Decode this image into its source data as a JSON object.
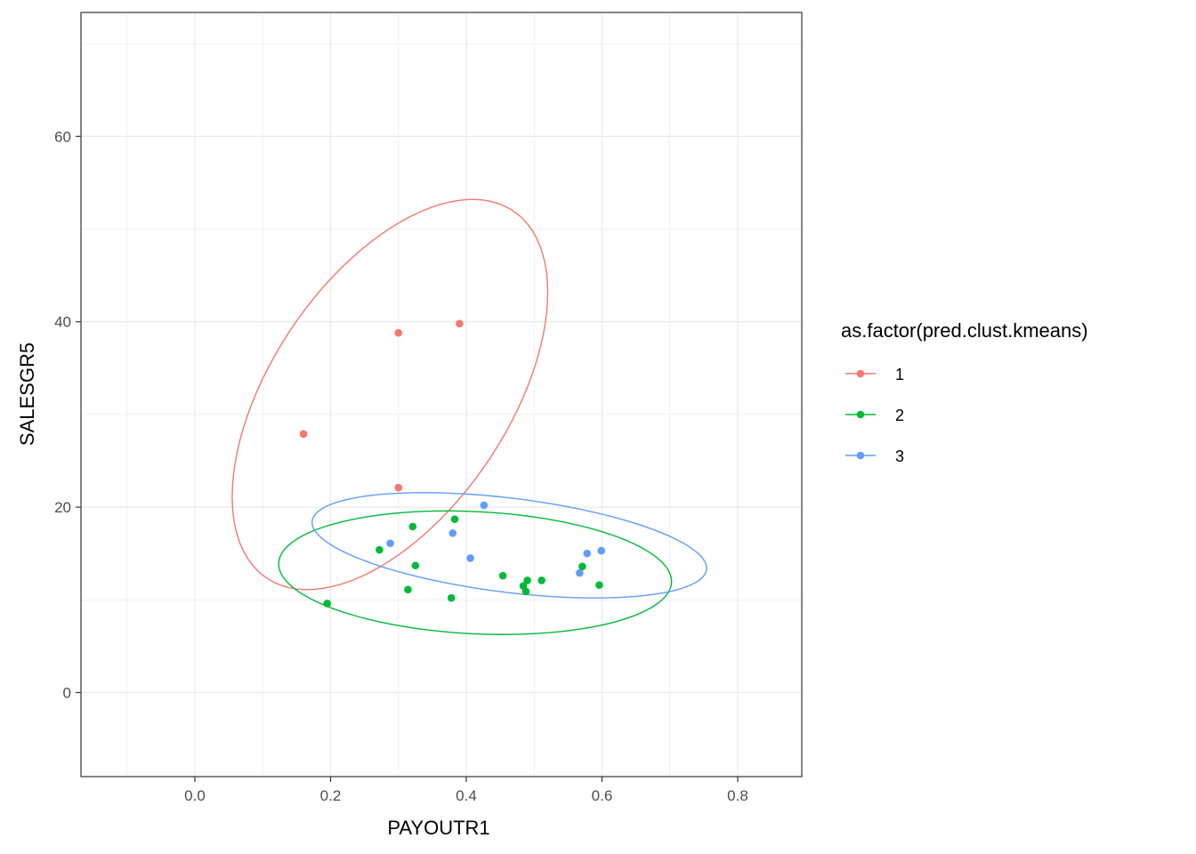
{
  "chart_data": {
    "type": "scatter",
    "xlabel": "PAYOUTR1",
    "ylabel": "SALESGR5",
    "xlim": [
      -0.17,
      0.89
    ],
    "ylim": [
      -9.0,
      73.0
    ],
    "x_ticks": [
      0.0,
      0.2,
      0.4,
      0.6,
      0.8
    ],
    "x_tick_labels": [
      "0.0",
      "0.2",
      "0.4",
      "0.6",
      "0.8"
    ],
    "x_minor_ticks": [
      -0.1,
      0.1,
      0.3,
      0.5,
      0.7
    ],
    "y_ticks": [
      0,
      20,
      40,
      60
    ],
    "y_tick_labels": [
      "0",
      "20",
      "40",
      "60"
    ],
    "y_minor_ticks": [
      10,
      30,
      50,
      70
    ],
    "grid": true,
    "legend": {
      "title": "as.factor(pred.clust.kmeans)",
      "placement": "right"
    },
    "series": [
      {
        "name": "1",
        "color": "#F8766D",
        "points": [
          {
            "x": 0.16,
            "y": 27.9
          },
          {
            "x": 0.3,
            "y": 38.8
          },
          {
            "x": 0.39,
            "y": 39.8
          },
          {
            "x": 0.3,
            "y": 22.1
          }
        ],
        "ellipse": {
          "cx": 0.285,
          "cy": 32.0,
          "rx_along": 0.19,
          "major_dir": [
            0.005,
            1.0
          ],
          "major": 40.0,
          "minor": 0.175,
          "angle_slope": 0.0
        }
      },
      {
        "name": "2",
        "color": "#00BA38",
        "points": [
          {
            "x": 0.195,
            "y": 9.6
          },
          {
            "x": 0.272,
            "y": 15.4
          },
          {
            "x": 0.314,
            "y": 11.1
          },
          {
            "x": 0.321,
            "y": 17.9
          },
          {
            "x": 0.325,
            "y": 13.7
          },
          {
            "x": 0.378,
            "y": 10.2
          },
          {
            "x": 0.383,
            "y": 18.7
          },
          {
            "x": 0.454,
            "y": 12.6
          },
          {
            "x": 0.484,
            "y": 11.5
          },
          {
            "x": 0.488,
            "y": 10.9
          },
          {
            "x": 0.49,
            "y": 12.1
          },
          {
            "x": 0.511,
            "y": 12.1
          },
          {
            "x": 0.571,
            "y": 13.6
          },
          {
            "x": 0.596,
            "y": 11.6
          }
        ]
      },
      {
        "name": "3",
        "color": "#619CFF",
        "points": [
          {
            "x": 0.288,
            "y": 16.1
          },
          {
            "x": 0.38,
            "y": 17.2
          },
          {
            "x": 0.406,
            "y": 14.5
          },
          {
            "x": 0.426,
            "y": 20.2
          },
          {
            "x": 0.567,
            "y": 12.9
          },
          {
            "x": 0.578,
            "y": 15.0
          },
          {
            "x": 0.599,
            "y": 15.3
          }
        ]
      }
    ]
  }
}
